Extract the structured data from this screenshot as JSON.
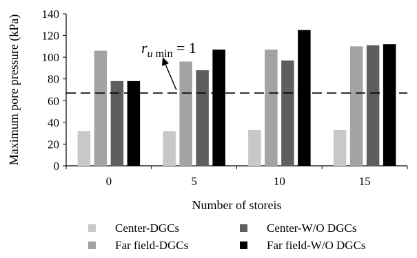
{
  "chart_data": {
    "type": "bar",
    "categories": [
      "0",
      "5",
      "10",
      "15"
    ],
    "series": [
      {
        "name": "Center-DGCs",
        "values": [
          32,
          32,
          33,
          33
        ],
        "color": "#c8c8c8"
      },
      {
        "name": "Far field-DGCs",
        "values": [
          106,
          96,
          107,
          110
        ],
        "color": "#a3a3a3"
      },
      {
        "name": "Center-W/O DGCs",
        "values": [
          78,
          88,
          97,
          111
        ],
        "color": "#5e5e5e"
      },
      {
        "name": "Far field-W/O DGCs",
        "values": [
          78,
          107,
          125,
          112
        ],
        "color": "#000000"
      }
    ],
    "xlabel": "Number of storeis",
    "ylabel": "Maximum pore pressure (kPa)",
    "ylim": [
      0,
      140
    ],
    "yticks": [
      0,
      20,
      40,
      60,
      80,
      100,
      120,
      140
    ],
    "reference_line": {
      "y": 67,
      "style": "dashed"
    },
    "annotation": {
      "base": "r",
      "subscript": "u min",
      "suffix": " = 1"
    },
    "grid": false,
    "legend_position": "bottom"
  }
}
